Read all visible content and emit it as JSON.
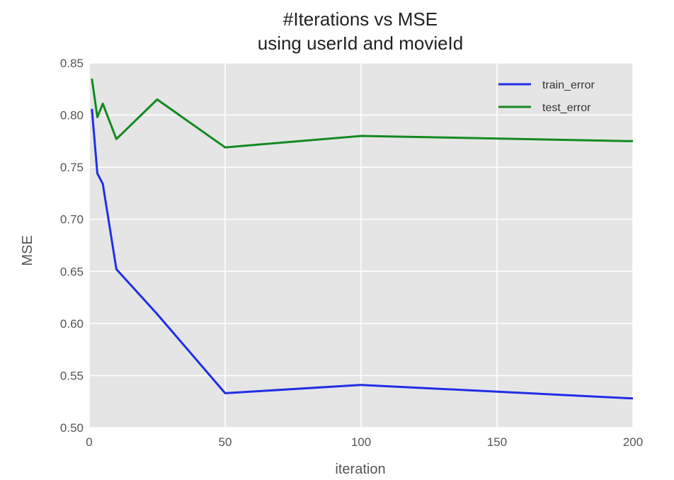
{
  "chart_data": {
    "type": "line",
    "title_lines": [
      "#Iterations vs MSE",
      "using userId and movieId"
    ],
    "xlabel": "iteration",
    "ylabel": "MSE",
    "xlim": [
      0,
      200
    ],
    "ylim": [
      0.5,
      0.85
    ],
    "xticks": [
      0,
      50,
      100,
      150,
      200
    ],
    "yticks": [
      0.5,
      0.55,
      0.6,
      0.65,
      0.7,
      0.75,
      0.8,
      0.85
    ],
    "ytick_labels": [
      "0.50",
      "0.55",
      "0.60",
      "0.65",
      "0.70",
      "0.75",
      "0.80",
      "0.85"
    ],
    "grid": true,
    "legend_position": "top-right",
    "series": [
      {
        "name": "train_error",
        "color": "#1f2fe6",
        "x": [
          1,
          3,
          5,
          10,
          25,
          50,
          100,
          200
        ],
        "y": [
          0.806,
          0.744,
          0.734,
          0.652,
          0.609,
          0.533,
          0.541,
          0.528
        ]
      },
      {
        "name": "test_error",
        "color": "#138a1f",
        "x": [
          1,
          3,
          5,
          10,
          25,
          50,
          100,
          200
        ],
        "y": [
          0.835,
          0.798,
          0.811,
          0.777,
          0.815,
          0.769,
          0.78,
          0.775
        ]
      }
    ]
  }
}
